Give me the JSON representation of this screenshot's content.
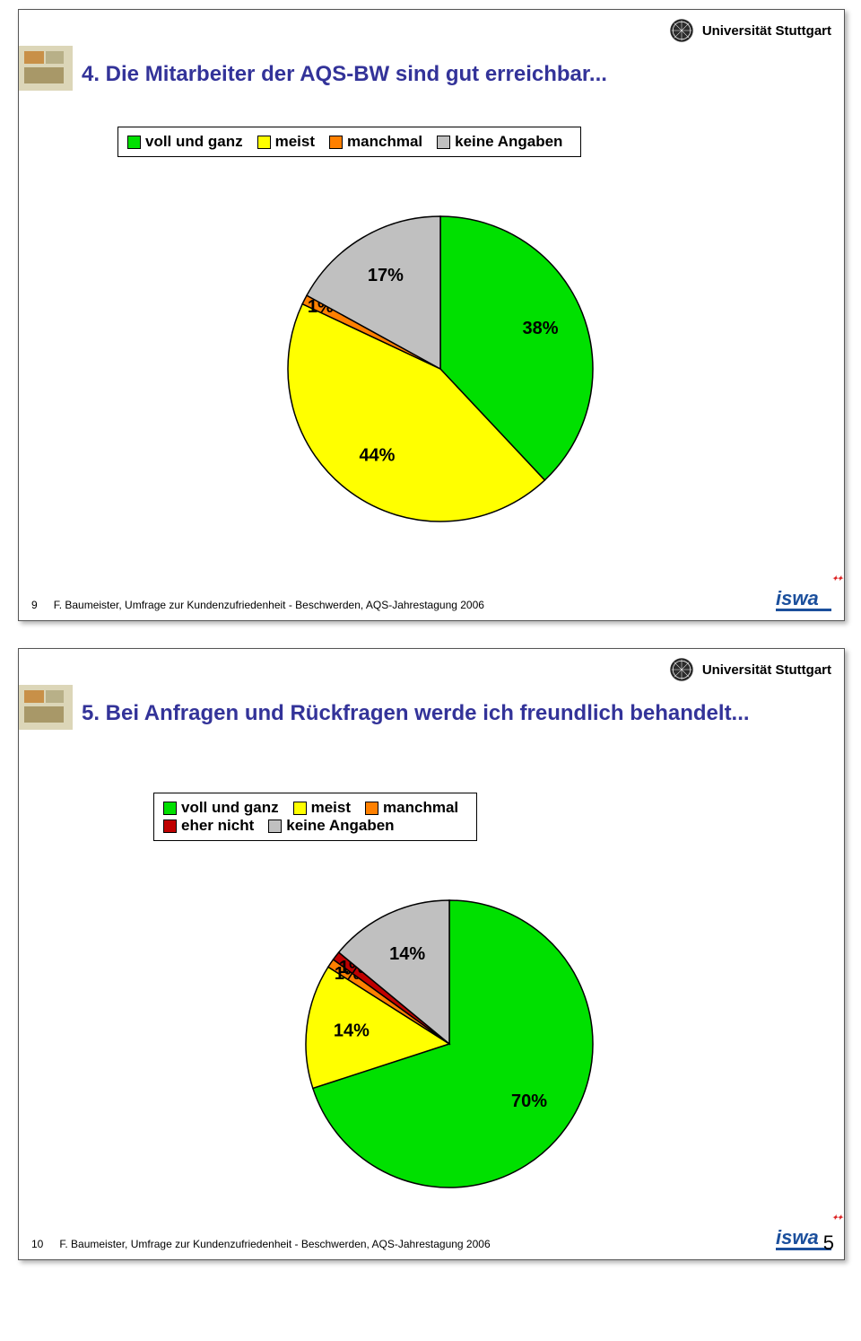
{
  "university": "Universität Stuttgart",
  "page_number": "5",
  "slide1": {
    "number": "9",
    "title": "4. Die Mitarbeiter der AQS-BW sind gut erreichbar...",
    "footer_text": "F. Baumeister, Umfrage zur Kundenzufriedenheit - Beschwerden, AQS-Jahrestagung 2006",
    "legend": {
      "items": [
        {
          "label": "voll und ganz",
          "color": "#00e000"
        },
        {
          "label": "meist",
          "color": "#ffff00"
        },
        {
          "label": "manchmal",
          "color": "#ff8000"
        },
        {
          "label": "keine Angaben",
          "color": "#c0c0c0"
        }
      ]
    },
    "chart": {
      "type": "pie",
      "stroke_color": "#000000",
      "stroke_width": 1.5,
      "slices": [
        {
          "label": "38%",
          "value": 38,
          "color": "#00e000"
        },
        {
          "label": "44%",
          "value": 44,
          "color": "#ffff00"
        },
        {
          "label": "1%",
          "value": 1,
          "color": "#ff8000"
        },
        {
          "label": "17%",
          "value": 17,
          "color": "#c0c0c0"
        }
      ],
      "label_fontsize": 20,
      "start_angle_deg": -90
    }
  },
  "slide2": {
    "number": "10",
    "title": "5. Bei Anfragen und Rückfragen werde ich freundlich behandelt...",
    "footer_text": "F. Baumeister, Umfrage zur Kundenzufriedenheit - Beschwerden, AQS-Jahrestagung 2006",
    "legend": {
      "items": [
        {
          "label": "voll und ganz",
          "color": "#00e000"
        },
        {
          "label": "meist",
          "color": "#ffff00"
        },
        {
          "label": "manchmal",
          "color": "#ff8000"
        },
        {
          "label": "eher nicht",
          "color": "#c00000"
        },
        {
          "label": "keine Angaben",
          "color": "#c0c0c0"
        }
      ]
    },
    "chart": {
      "type": "pie",
      "stroke_color": "#000000",
      "stroke_width": 1.5,
      "slices": [
        {
          "label": "70%",
          "value": 70,
          "color": "#00e000"
        },
        {
          "label": "14%",
          "value": 14,
          "color": "#ffff00"
        },
        {
          "label": "1%",
          "value": 1,
          "color": "#ff8000"
        },
        {
          "label": "1%",
          "value": 1,
          "color": "#c00000"
        },
        {
          "label": "14%",
          "value": 14,
          "color": "#c0c0c0"
        }
      ],
      "label_fontsize": 20,
      "start_angle_deg": -90
    }
  },
  "logo_text": "iswa"
}
